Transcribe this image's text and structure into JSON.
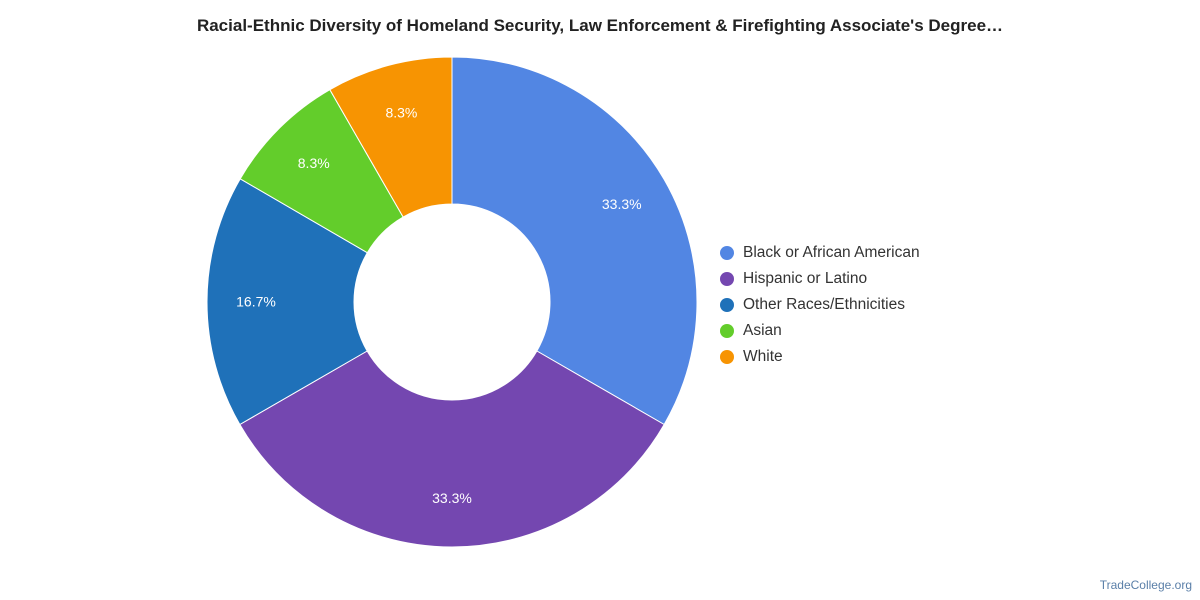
{
  "chart_data": {
    "type": "pie",
    "title": "Racial-Ethnic Diversity of Homeland Security, Law Enforcement & Firefighting Associate's Degree…",
    "categories": [
      "Black or African American",
      "Hispanic or Latino",
      "Other Races/Ethnicities",
      "Asian",
      "White"
    ],
    "values": [
      33.3,
      33.3,
      16.7,
      8.3,
      8.3
    ],
    "labels": [
      "33.3%",
      "33.3%",
      "16.7%",
      "8.3%",
      "8.3%"
    ],
    "colors": [
      "#5286e3",
      "#7447b0",
      "#1f71b9",
      "#63cd2b",
      "#f79402"
    ],
    "donut": true,
    "legend_position": "right"
  },
  "source": "TradeCollege.org"
}
